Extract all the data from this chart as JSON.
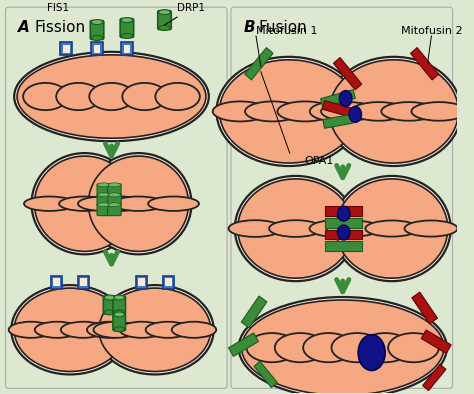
{
  "bg_color": "#dde8d0",
  "mito_outer_fill": "#fce8dc",
  "mito_inner_fill": "#f5a882",
  "mito_edge": "#222222",
  "drp1_color": "#3a8c3a",
  "drp1_top": "#6ab86a",
  "fis1_color": "#3a7abd",
  "fusion_green": "#3a8c3a",
  "fusion_red": "#aa1111",
  "opa1_color": "#111188",
  "arrow_color": "#3a8c3a",
  "title_A": "A",
  "title_B": "B",
  "label_fission": "Fission",
  "label_fusion": "Fusion",
  "label_drp1": "DRP1",
  "label_fis1": "FIS1",
  "label_opa1": "OPA1",
  "label_mfn1": "Mitofusin 1",
  "label_mfn2": "Mitofusin 2",
  "fig_width": 4.74,
  "fig_height": 3.94,
  "dpi": 100
}
